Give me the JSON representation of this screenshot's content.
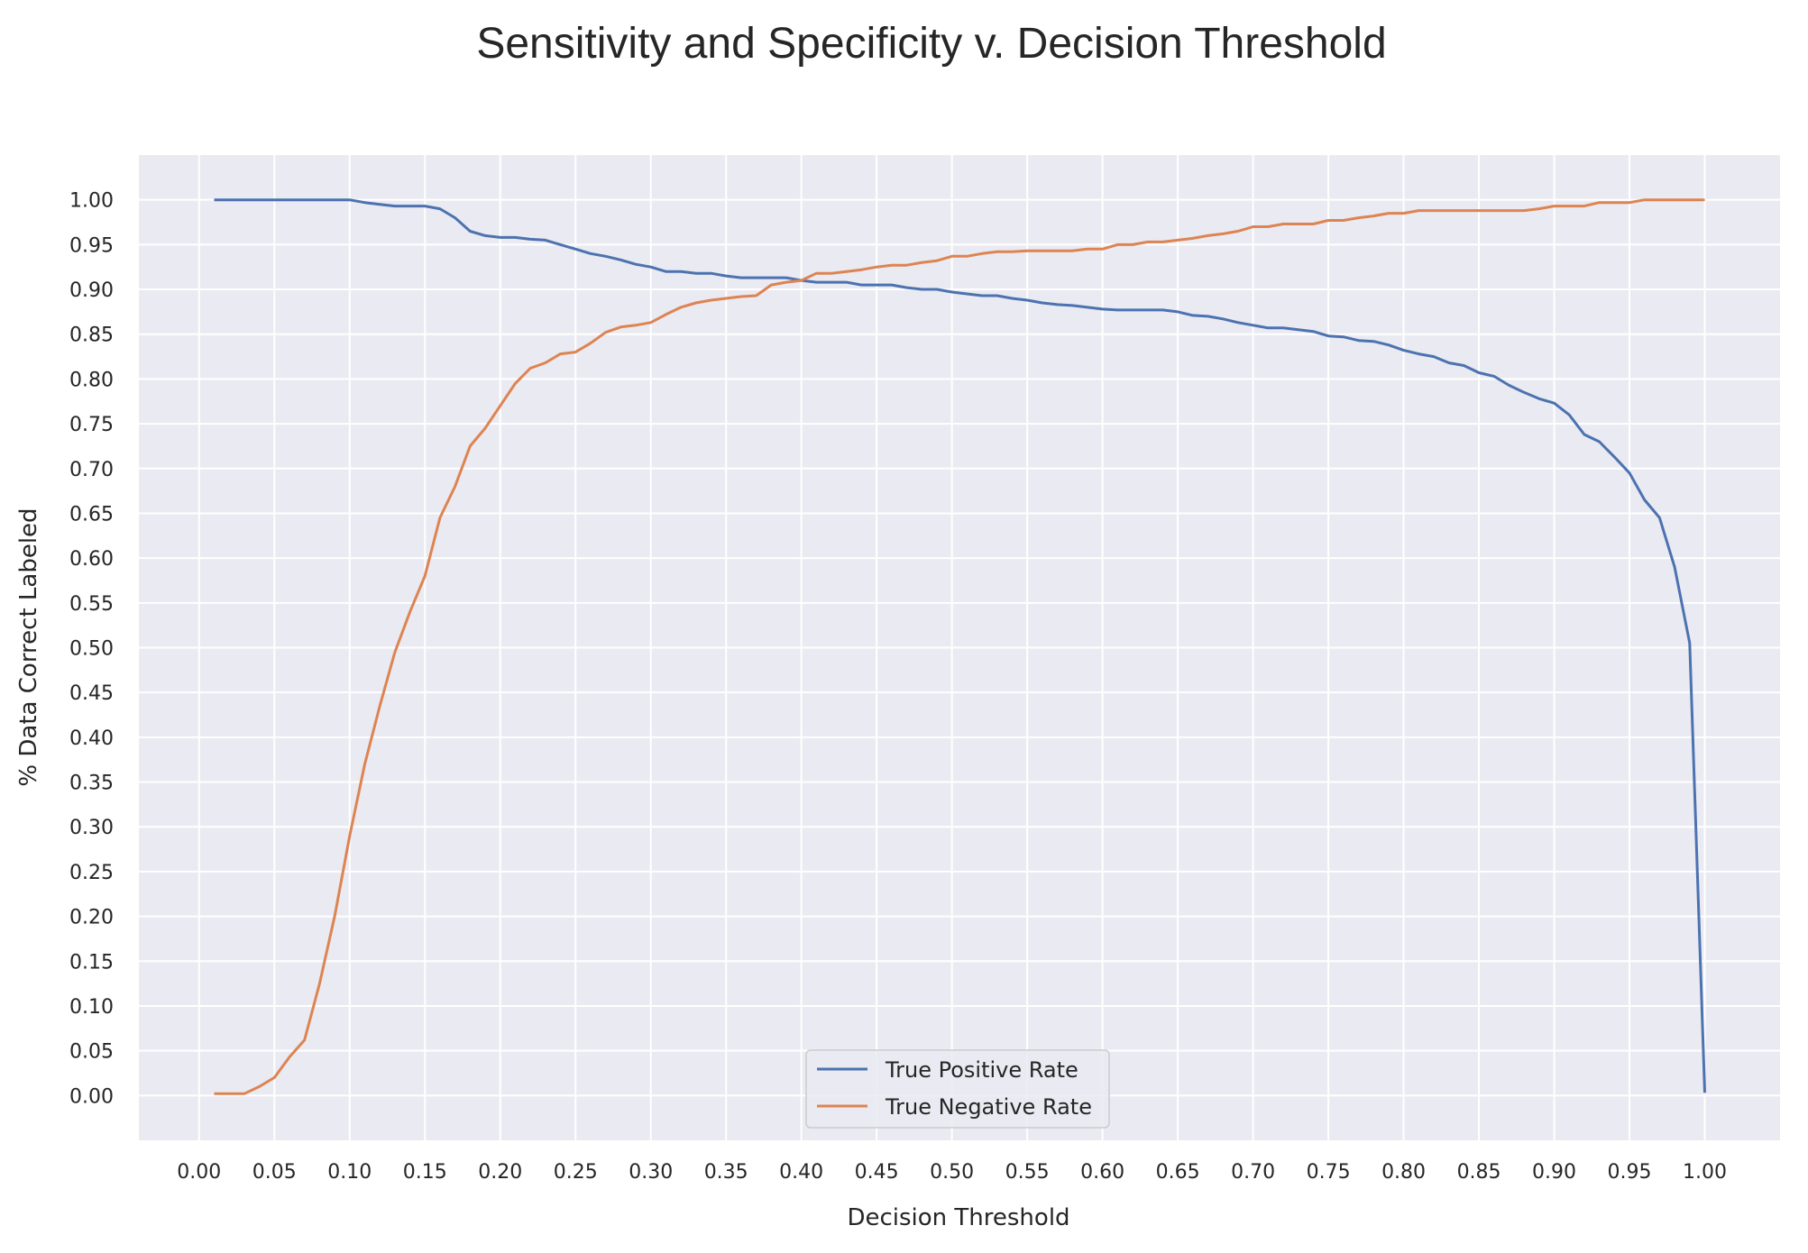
{
  "chart_data": {
    "type": "line",
    "title": "Sensitivity and Specificity v. Decision Threshold",
    "xlabel": "Decision Threshold",
    "ylabel": "% Data Correct Labeled",
    "xlim": [
      -0.04,
      1.05
    ],
    "ylim": [
      -0.05,
      1.05
    ],
    "grid": true,
    "legend_position": "lower center",
    "x_ticks": [
      "0.00",
      "0.05",
      "0.10",
      "0.15",
      "0.20",
      "0.25",
      "0.30",
      "0.35",
      "0.40",
      "0.45",
      "0.50",
      "0.55",
      "0.60",
      "0.65",
      "0.70",
      "0.75",
      "0.80",
      "0.85",
      "0.90",
      "0.95",
      "1.00"
    ],
    "y_ticks": [
      "0.00",
      "0.05",
      "0.10",
      "0.15",
      "0.20",
      "0.25",
      "0.30",
      "0.35",
      "0.40",
      "0.45",
      "0.50",
      "0.55",
      "0.60",
      "0.65",
      "0.70",
      "0.75",
      "0.80",
      "0.85",
      "0.90",
      "0.95",
      "1.00"
    ],
    "background": "#eaeaf2",
    "grid_color": "#ffffff",
    "series": [
      {
        "name": "True Positive Rate",
        "color": "#4c72b0",
        "points": [
          [
            0.01,
            1.0
          ],
          [
            0.02,
            1.0
          ],
          [
            0.03,
            1.0
          ],
          [
            0.04,
            1.0
          ],
          [
            0.05,
            1.0
          ],
          [
            0.06,
            1.0
          ],
          [
            0.07,
            1.0
          ],
          [
            0.08,
            1.0
          ],
          [
            0.09,
            1.0
          ],
          [
            0.1,
            1.0
          ],
          [
            0.11,
            0.997
          ],
          [
            0.12,
            0.995
          ],
          [
            0.13,
            0.993
          ],
          [
            0.14,
            0.993
          ],
          [
            0.15,
            0.993
          ],
          [
            0.16,
            0.99
          ],
          [
            0.17,
            0.98
          ],
          [
            0.18,
            0.965
          ],
          [
            0.19,
            0.96
          ],
          [
            0.2,
            0.958
          ],
          [
            0.21,
            0.958
          ],
          [
            0.22,
            0.956
          ],
          [
            0.23,
            0.955
          ],
          [
            0.24,
            0.95
          ],
          [
            0.25,
            0.945
          ],
          [
            0.26,
            0.94
          ],
          [
            0.27,
            0.937
          ],
          [
            0.28,
            0.933
          ],
          [
            0.29,
            0.928
          ],
          [
            0.3,
            0.925
          ],
          [
            0.31,
            0.92
          ],
          [
            0.32,
            0.92
          ],
          [
            0.33,
            0.918
          ],
          [
            0.34,
            0.918
          ],
          [
            0.35,
            0.915
          ],
          [
            0.36,
            0.913
          ],
          [
            0.37,
            0.913
          ],
          [
            0.38,
            0.913
          ],
          [
            0.39,
            0.913
          ],
          [
            0.4,
            0.91
          ],
          [
            0.41,
            0.908
          ],
          [
            0.42,
            0.908
          ],
          [
            0.43,
            0.908
          ],
          [
            0.44,
            0.905
          ],
          [
            0.45,
            0.905
          ],
          [
            0.46,
            0.905
          ],
          [
            0.47,
            0.902
          ],
          [
            0.48,
            0.9
          ],
          [
            0.49,
            0.9
          ],
          [
            0.5,
            0.897
          ],
          [
            0.51,
            0.895
          ],
          [
            0.52,
            0.893
          ],
          [
            0.53,
            0.893
          ],
          [
            0.54,
            0.89
          ],
          [
            0.55,
            0.888
          ],
          [
            0.56,
            0.885
          ],
          [
            0.57,
            0.883
          ],
          [
            0.58,
            0.882
          ],
          [
            0.59,
            0.88
          ],
          [
            0.6,
            0.878
          ],
          [
            0.61,
            0.877
          ],
          [
            0.62,
            0.877
          ],
          [
            0.63,
            0.877
          ],
          [
            0.64,
            0.877
          ],
          [
            0.65,
            0.875
          ],
          [
            0.66,
            0.871
          ],
          [
            0.67,
            0.87
          ],
          [
            0.68,
            0.867
          ],
          [
            0.69,
            0.863
          ],
          [
            0.7,
            0.86
          ],
          [
            0.71,
            0.857
          ],
          [
            0.72,
            0.857
          ],
          [
            0.73,
            0.855
          ],
          [
            0.74,
            0.853
          ],
          [
            0.75,
            0.848
          ],
          [
            0.76,
            0.847
          ],
          [
            0.77,
            0.843
          ],
          [
            0.78,
            0.842
          ],
          [
            0.79,
            0.838
          ],
          [
            0.8,
            0.832
          ],
          [
            0.81,
            0.828
          ],
          [
            0.82,
            0.825
          ],
          [
            0.83,
            0.818
          ],
          [
            0.84,
            0.815
          ],
          [
            0.85,
            0.807
          ],
          [
            0.86,
            0.803
          ],
          [
            0.87,
            0.793
          ],
          [
            0.88,
            0.785
          ],
          [
            0.89,
            0.778
          ],
          [
            0.9,
            0.773
          ],
          [
            0.91,
            0.76
          ],
          [
            0.92,
            0.738
          ],
          [
            0.93,
            0.73
          ],
          [
            0.94,
            0.713
          ],
          [
            0.95,
            0.695
          ],
          [
            0.96,
            0.665
          ],
          [
            0.97,
            0.645
          ],
          [
            0.98,
            0.59
          ],
          [
            0.99,
            0.505
          ],
          [
            1.0,
            0.003
          ]
        ]
      },
      {
        "name": "True Negative Rate",
        "color": "#dd8452",
        "points": [
          [
            0.01,
            0.002
          ],
          [
            0.02,
            0.002
          ],
          [
            0.03,
            0.002
          ],
          [
            0.04,
            0.01
          ],
          [
            0.05,
            0.02
          ],
          [
            0.06,
            0.043
          ],
          [
            0.07,
            0.062
          ],
          [
            0.08,
            0.125
          ],
          [
            0.09,
            0.2
          ],
          [
            0.1,
            0.29
          ],
          [
            0.11,
            0.37
          ],
          [
            0.12,
            0.435
          ],
          [
            0.13,
            0.495
          ],
          [
            0.14,
            0.54
          ],
          [
            0.15,
            0.58
          ],
          [
            0.16,
            0.645
          ],
          [
            0.17,
            0.68
          ],
          [
            0.18,
            0.725
          ],
          [
            0.19,
            0.745
          ],
          [
            0.2,
            0.77
          ],
          [
            0.21,
            0.795
          ],
          [
            0.22,
            0.812
          ],
          [
            0.23,
            0.818
          ],
          [
            0.24,
            0.828
          ],
          [
            0.25,
            0.83
          ],
          [
            0.26,
            0.84
          ],
          [
            0.27,
            0.852
          ],
          [
            0.28,
            0.858
          ],
          [
            0.29,
            0.86
          ],
          [
            0.3,
            0.863
          ],
          [
            0.31,
            0.872
          ],
          [
            0.32,
            0.88
          ],
          [
            0.33,
            0.885
          ],
          [
            0.34,
            0.888
          ],
          [
            0.35,
            0.89
          ],
          [
            0.36,
            0.892
          ],
          [
            0.37,
            0.893
          ],
          [
            0.38,
            0.905
          ],
          [
            0.39,
            0.908
          ],
          [
            0.4,
            0.91
          ],
          [
            0.41,
            0.918
          ],
          [
            0.42,
            0.918
          ],
          [
            0.43,
            0.92
          ],
          [
            0.44,
            0.922
          ],
          [
            0.45,
            0.925
          ],
          [
            0.46,
            0.927
          ],
          [
            0.47,
            0.927
          ],
          [
            0.48,
            0.93
          ],
          [
            0.49,
            0.932
          ],
          [
            0.5,
            0.937
          ],
          [
            0.51,
            0.937
          ],
          [
            0.52,
            0.94
          ],
          [
            0.53,
            0.942
          ],
          [
            0.54,
            0.942
          ],
          [
            0.55,
            0.943
          ],
          [
            0.56,
            0.943
          ],
          [
            0.57,
            0.943
          ],
          [
            0.58,
            0.943
          ],
          [
            0.59,
            0.945
          ],
          [
            0.6,
            0.945
          ],
          [
            0.61,
            0.95
          ],
          [
            0.62,
            0.95
          ],
          [
            0.63,
            0.953
          ],
          [
            0.64,
            0.953
          ],
          [
            0.65,
            0.955
          ],
          [
            0.66,
            0.957
          ],
          [
            0.67,
            0.96
          ],
          [
            0.68,
            0.962
          ],
          [
            0.69,
            0.965
          ],
          [
            0.7,
            0.97
          ],
          [
            0.71,
            0.97
          ],
          [
            0.72,
            0.973
          ],
          [
            0.73,
            0.973
          ],
          [
            0.74,
            0.973
          ],
          [
            0.75,
            0.977
          ],
          [
            0.76,
            0.977
          ],
          [
            0.77,
            0.98
          ],
          [
            0.78,
            0.982
          ],
          [
            0.79,
            0.985
          ],
          [
            0.8,
            0.985
          ],
          [
            0.81,
            0.988
          ],
          [
            0.82,
            0.988
          ],
          [
            0.83,
            0.988
          ],
          [
            0.84,
            0.988
          ],
          [
            0.85,
            0.988
          ],
          [
            0.86,
            0.988
          ],
          [
            0.87,
            0.988
          ],
          [
            0.88,
            0.988
          ],
          [
            0.89,
            0.99
          ],
          [
            0.9,
            0.993
          ],
          [
            0.91,
            0.993
          ],
          [
            0.92,
            0.993
          ],
          [
            0.93,
            0.997
          ],
          [
            0.94,
            0.997
          ],
          [
            0.95,
            0.997
          ],
          [
            0.96,
            1.0
          ],
          [
            0.97,
            1.0
          ],
          [
            0.98,
            1.0
          ],
          [
            0.99,
            1.0
          ],
          [
            1.0,
            1.0
          ]
        ]
      }
    ]
  }
}
